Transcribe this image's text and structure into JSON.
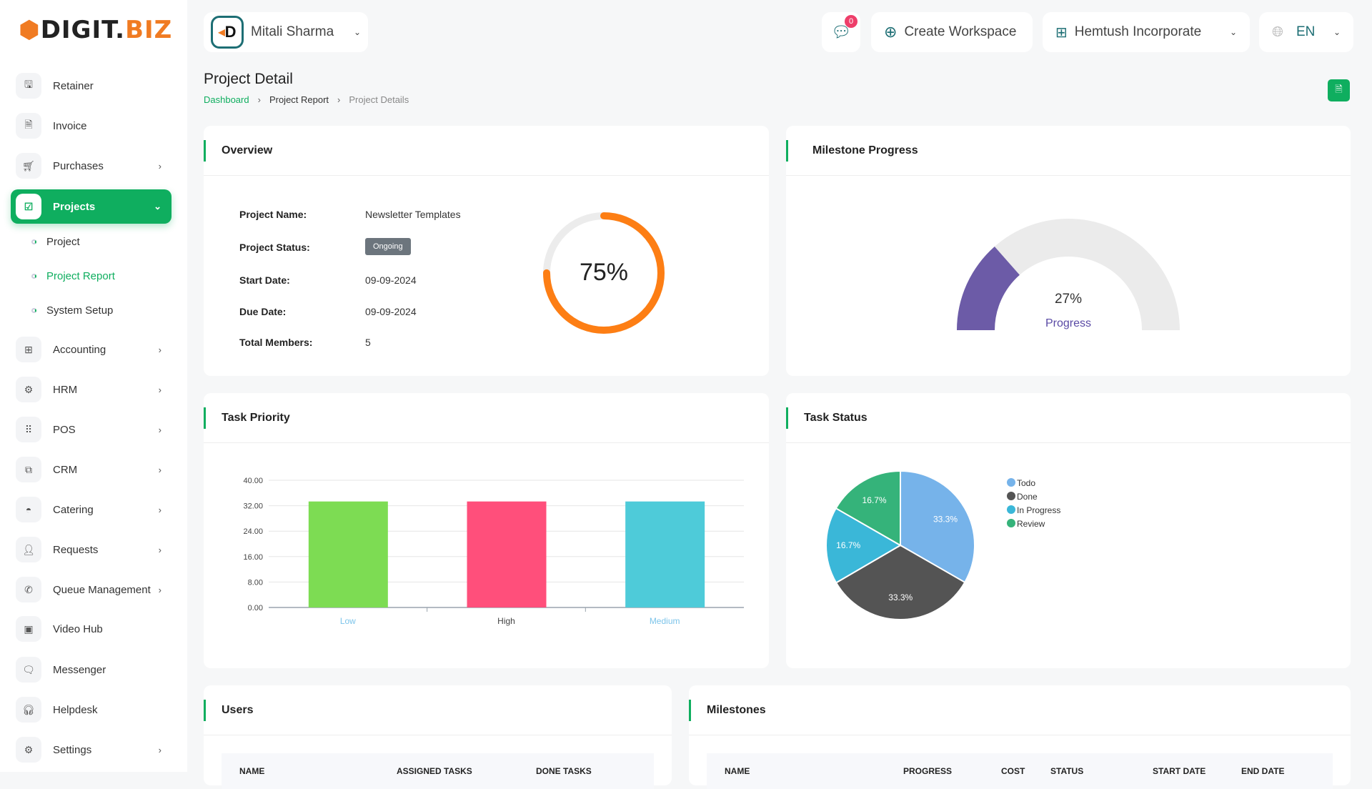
{
  "brand": {
    "logo_left": "DIGIT.",
    "logo_right": "BIZ"
  },
  "header": {
    "user": "Mitali Sharma",
    "notif_count": "0",
    "create_workspace": "Create Workspace",
    "company": "Hemtush Incorporate",
    "language": "EN"
  },
  "sidebar": {
    "items": [
      {
        "label": "Retainer",
        "icon": "save-icon",
        "chev": false
      },
      {
        "label": "Invoice",
        "icon": "file-icon",
        "chev": false
      },
      {
        "label": "Purchases",
        "icon": "cart-icon",
        "chev": true
      },
      {
        "label": "Projects",
        "icon": "check-square-icon",
        "chev": true,
        "active": true
      },
      {
        "label": "Accounting",
        "icon": "grid-icon",
        "chev": true
      },
      {
        "label": "HRM",
        "icon": "users-cog-icon",
        "chev": true
      },
      {
        "label": "POS",
        "icon": "dots-grid-icon",
        "chev": true
      },
      {
        "label": "CRM",
        "icon": "copy-icon",
        "chev": true
      },
      {
        "label": "Catering",
        "icon": "cloche-icon",
        "chev": true
      },
      {
        "label": "Requests",
        "icon": "user-plus-icon",
        "chev": true
      },
      {
        "label": "Queue Management",
        "icon": "phone-icon",
        "chev": true
      },
      {
        "label": "Video Hub",
        "icon": "video-icon",
        "chev": false
      },
      {
        "label": "Messenger",
        "icon": "chat-icon",
        "chev": false
      },
      {
        "label": "Helpdesk",
        "icon": "headset-icon",
        "chev": false
      },
      {
        "label": "Settings",
        "icon": "gear-icon",
        "chev": true
      }
    ],
    "sub_items": [
      "Project",
      "Project Report",
      "System Setup"
    ],
    "active_sub": 1
  },
  "page": {
    "title": "Project Detail",
    "breadcrumb": [
      "Dashboard",
      "Project Report",
      "Project Details"
    ]
  },
  "overview": {
    "title": "Overview",
    "fields": [
      {
        "label": "Project Name:",
        "value": "Newsletter Templates"
      },
      {
        "label": "Project Status:",
        "value": "Ongoing"
      },
      {
        "label": "Start Date:",
        "value": "09-09-2024"
      },
      {
        "label": "Due Date:",
        "value": "09-09-2024"
      },
      {
        "label": "Total Members:",
        "value": "5"
      }
    ],
    "progress": 75,
    "progress_label": "75%",
    "progress_color": "#fd7e14"
  },
  "milestone_progress": {
    "title": "Milestone Progress",
    "value": 27,
    "value_label": "27%",
    "caption": "Progress",
    "color": "#6c5ba7"
  },
  "chart_data": [
    {
      "type": "bar",
      "title": "Task Priority",
      "categories": [
        "Low",
        "High",
        "Medium"
      ],
      "values": [
        33.33,
        33.33,
        33.33
      ],
      "colors": [
        "#7ddc53",
        "#ff4f7b",
        "#4ecbd9"
      ],
      "ylim": [
        0,
        40
      ],
      "yticks": [
        "0.00",
        "8.00",
        "16.00",
        "24.00",
        "32.00",
        "40.00"
      ],
      "grid": true
    },
    {
      "type": "pie",
      "title": "Task Status",
      "categories": [
        "Todo",
        "Done",
        "In Progress",
        "Review"
      ],
      "values": [
        33.3,
        33.3,
        16.7,
        16.7
      ],
      "labels": [
        "33.3%",
        "33.3%",
        "16.7%",
        "16.7%"
      ],
      "colors": [
        "#76b3ea",
        "#545454",
        "#3ab7d8",
        "#35b37a"
      ],
      "legend": "right"
    }
  ],
  "users": {
    "title": "Users",
    "columns": [
      "NAME",
      "ASSIGNED TASKS",
      "DONE TASKS"
    ]
  },
  "milestones": {
    "title": "Milestones",
    "columns": [
      "NAME",
      "PROGRESS",
      "COST",
      "STATUS",
      "START DATE",
      "END DATE"
    ]
  }
}
